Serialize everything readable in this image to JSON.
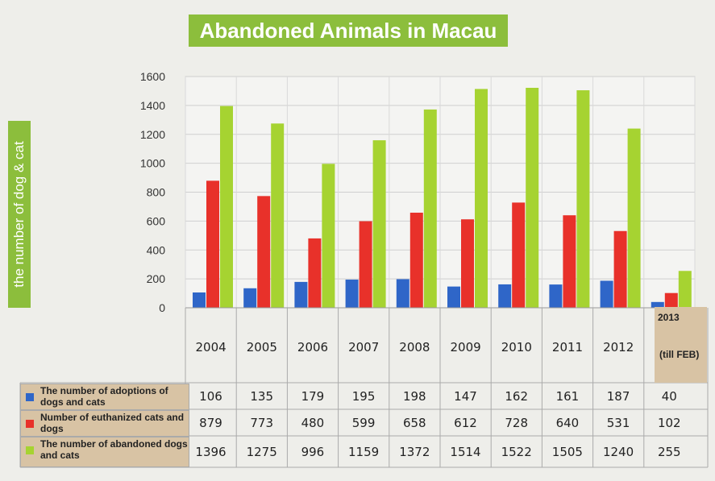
{
  "title": "Abandoned Animals in Macau",
  "ylabel": "the number of dog & cat",
  "colors": {
    "title_bg": "#8cbe3c",
    "adoptions": "#2f66c8",
    "euthanized": "#e8312a",
    "abandoned": "#a6d331",
    "legend_bg": "#d8c3a4"
  },
  "chart_data": {
    "type": "bar",
    "title": "Abandoned Animals in Macau",
    "xlabel": "",
    "ylabel": "the number of dog & cat",
    "ylim": [
      0,
      1600
    ],
    "yticks": [
      "0",
      "200",
      "400",
      "600",
      "800",
      "1000",
      "1200",
      "1400",
      "1600"
    ],
    "grid": true,
    "categories": [
      "2004",
      "2005",
      "2006",
      "2007",
      "2008",
      "2009",
      "2010",
      "2011",
      "2012",
      "2013"
    ],
    "last_category_note": "(till FEB)",
    "series": [
      {
        "name": "The number of adoptions of dogs and cats",
        "values": [
          106,
          135,
          179,
          195,
          198,
          147,
          162,
          161,
          187,
          40
        ]
      },
      {
        "name": "Number of euthanized cats and dogs",
        "values": [
          879,
          773,
          480,
          599,
          658,
          612,
          728,
          640,
          531,
          102
        ]
      },
      {
        "name": "The number of abandoned dogs and cats",
        "values": [
          1396,
          1275,
          996,
          1159,
          1372,
          1514,
          1522,
          1505,
          1240,
          255
        ]
      }
    ],
    "legend_position": "table-left"
  },
  "table": {
    "rows": [
      {
        "label": "The number of adoptions of dogs and cats",
        "values": [
          "106",
          "135",
          "179",
          "195",
          "198",
          "147",
          "162",
          "161",
          "187",
          "40"
        ]
      },
      {
        "label": "Number of euthanized cats and dogs",
        "values": [
          "879",
          "773",
          "480",
          "599",
          "658",
          "612",
          "728",
          "640",
          "531",
          "102"
        ]
      },
      {
        "label": "The number of abandoned dogs and cats",
        "values": [
          "1396",
          "1275",
          "996",
          "1159",
          "1372",
          "1514",
          "1522",
          "1505",
          "1240",
          "255"
        ]
      }
    ]
  }
}
